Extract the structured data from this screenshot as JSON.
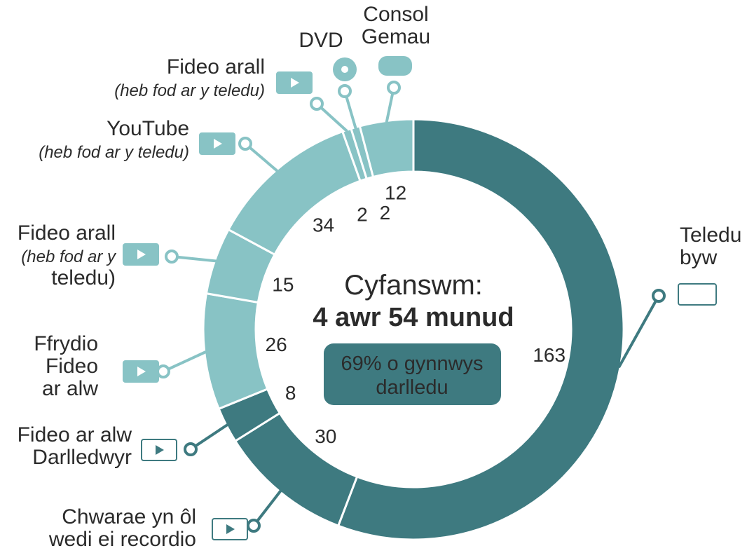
{
  "chart_data": {
    "type": "donut",
    "categories": [
      "Teledu\nbyw",
      "Chwarae yn ôl\nwedi ei recordio",
      "Fideo ar alw\nDarlledwyr",
      "Ffrydio\nFideo\nar alw",
      "Fideo arall\n(heb fod ar y\nteledu)",
      "YouTube\n(heb fod ar y teledu)",
      "Fideo arall\n(heb fod ar y teledu)",
      "DVD",
      "Consol\nGemau"
    ],
    "values": [
      163,
      30,
      8,
      26,
      15,
      34,
      2,
      2,
      12
    ],
    "colors": [
      "#3e7a80",
      "#3e7a80",
      "#3e7a80",
      "#88c3c5",
      "#88c3c5",
      "#88c3c5",
      "#88c3c5",
      "#88c3c5",
      "#88c3c5"
    ],
    "center_title": "Cyfanswm:",
    "center_total": "4 awr 54 munud",
    "badge": "69% o gynnwys\ndarlledu"
  }
}
